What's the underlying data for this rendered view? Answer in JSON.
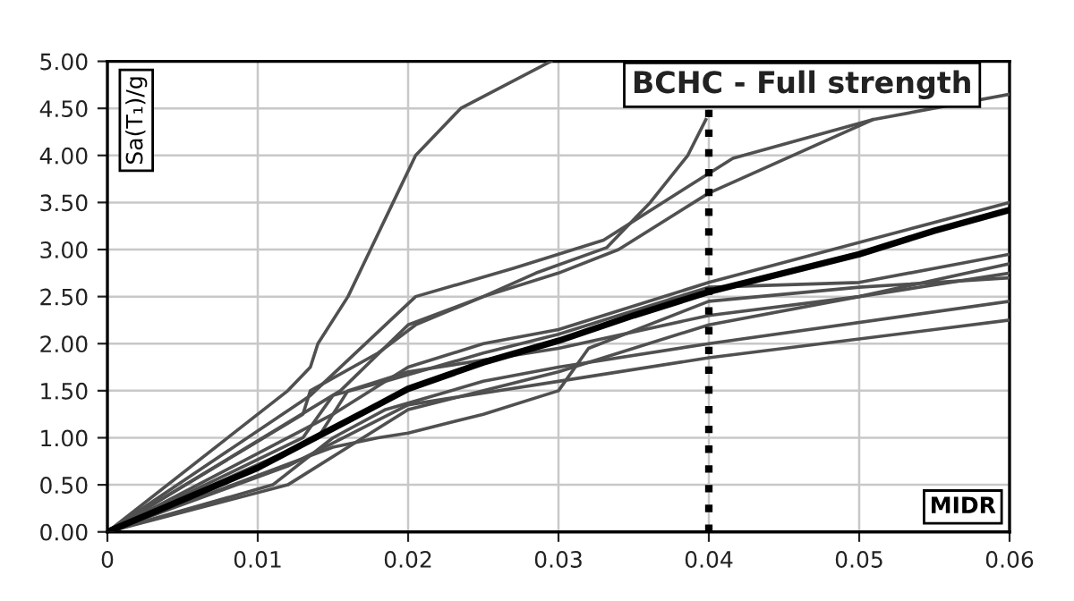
{
  "chart_data": {
    "type": "line",
    "xlabel": "MIDR",
    "ylabel": "Sa(T₁)/g",
    "annotations": [
      "BCHC - Full strength"
    ],
    "xlim": [
      0,
      0.06
    ],
    "ylim": [
      0,
      5
    ],
    "xticks": [
      0,
      0.01,
      0.02,
      0.03,
      0.04,
      0.05,
      0.06
    ],
    "yticks": [
      {
        "value": 0,
        "label": "0.00"
      },
      {
        "value": 0.5,
        "label": "0.50"
      },
      {
        "value": 1,
        "label": "1.00"
      },
      {
        "value": 1.5,
        "label": "1.50"
      },
      {
        "value": 2,
        "label": "2.00"
      },
      {
        "value": 2.5,
        "label": "2.50"
      },
      {
        "value": 3,
        "label": "3.00"
      },
      {
        "value": 3.5,
        "label": "3.50"
      },
      {
        "value": 4,
        "label": "4.00"
      },
      {
        "value": 4.5,
        "label": "4.50"
      },
      {
        "value": 5,
        "label": "5.00"
      }
    ],
    "grid": true,
    "marker": "none",
    "line_style": "solid",
    "ref_lines": [
      {
        "axis": "x",
        "value": 0.04,
        "color": "#000000",
        "line_style": "dotted"
      }
    ],
    "series": [
      {
        "color": "#505050",
        "x": [
          0,
          0.012,
          0.0135,
          0.014,
          0.016,
          0.0175,
          0.019,
          0.0205,
          0.0235,
          0.0295
        ],
        "values": [
          0,
          1.5,
          1.75,
          2.0,
          2.5,
          3.0,
          3.5,
          4.0,
          4.5,
          5.0
        ]
      },
      {
        "color": "#505050",
        "x": [
          0,
          0.013,
          0.0135,
          0.018,
          0.0205,
          0.025,
          0.0285,
          0.0332,
          0.0361,
          0.0386,
          0.0398
        ],
        "values": [
          0,
          1.25,
          1.5,
          1.9,
          2.2,
          2.5,
          2.75,
          3.02,
          3.5,
          4.0,
          4.38
        ]
      },
      {
        "color": "#505050",
        "x": [
          0,
          0.0135,
          0.0205,
          0.027,
          0.033,
          0.0416,
          0.0509,
          0.06
        ],
        "values": [
          0,
          1.45,
          2.5,
          2.8,
          3.1,
          3.97,
          4.38,
          4.65
        ]
      },
      {
        "color": "#505050",
        "x": [
          0,
          0.0155,
          0.02,
          0.025,
          0.03,
          0.034,
          0.04,
          0.0509
        ],
        "values": [
          0,
          1.5,
          2.2,
          2.5,
          2.75,
          3.0,
          3.6,
          4.38
        ]
      },
      {
        "color": "#505050",
        "x": [
          0,
          0.015,
          0.02,
          0.025,
          0.03,
          0.04,
          0.06
        ],
        "values": [
          0,
          1.25,
          1.75,
          2.0,
          2.15,
          2.65,
          3.5
        ]
      },
      {
        "color": "#505050",
        "x": [
          0,
          0.015,
          0.018,
          0.02,
          0.025,
          0.03,
          0.032,
          0.04,
          0.05,
          0.06
        ],
        "values": [
          0,
          0.9,
          1.0,
          1.05,
          1.25,
          1.5,
          1.95,
          2.45,
          2.6,
          2.7
        ]
      },
      {
        "color": "#505050",
        "x": [
          0,
          0.012,
          0.02,
          0.03,
          0.04,
          0.05,
          0.06
        ],
        "values": [
          0,
          0.5,
          1.3,
          1.7,
          2.2,
          2.5,
          2.85
        ]
      },
      {
        "color": "#505050",
        "x": [
          0,
          0.011,
          0.015,
          0.0185,
          0.025,
          0.03,
          0.04,
          0.06
        ],
        "values": [
          0,
          0.5,
          1.0,
          1.3,
          1.6,
          1.75,
          2.0,
          2.45
        ]
      },
      {
        "color": "#505050",
        "x": [
          0,
          0.012,
          0.02,
          0.03,
          0.04,
          0.06
        ],
        "values": [
          0,
          0.7,
          1.35,
          1.6,
          1.85,
          2.25
        ]
      },
      {
        "color": "#505050",
        "x": [
          0,
          0.014,
          0.016,
          0.02,
          0.03,
          0.04,
          0.05,
          0.06
        ],
        "values": [
          0,
          1.0,
          1.5,
          1.7,
          1.95,
          2.3,
          2.5,
          2.75
        ]
      },
      {
        "color": "#505050",
        "x": [
          0,
          0.013,
          0.015,
          0.0185,
          0.025,
          0.03,
          0.04,
          0.05,
          0.06
        ],
        "values": [
          0,
          1.0,
          1.45,
          1.6,
          1.9,
          2.1,
          2.6,
          2.65,
          2.95
        ]
      },
      {
        "color": "#000000",
        "x": [
          0,
          0.01,
          0.015,
          0.018,
          0.02,
          0.025,
          0.03,
          0.035,
          0.04,
          0.045,
          0.05,
          0.055,
          0.06
        ],
        "values": [
          0,
          0.68,
          1.1,
          1.35,
          1.52,
          1.8,
          2.03,
          2.3,
          2.55,
          2.75,
          2.95,
          3.2,
          3.42
        ]
      }
    ]
  }
}
